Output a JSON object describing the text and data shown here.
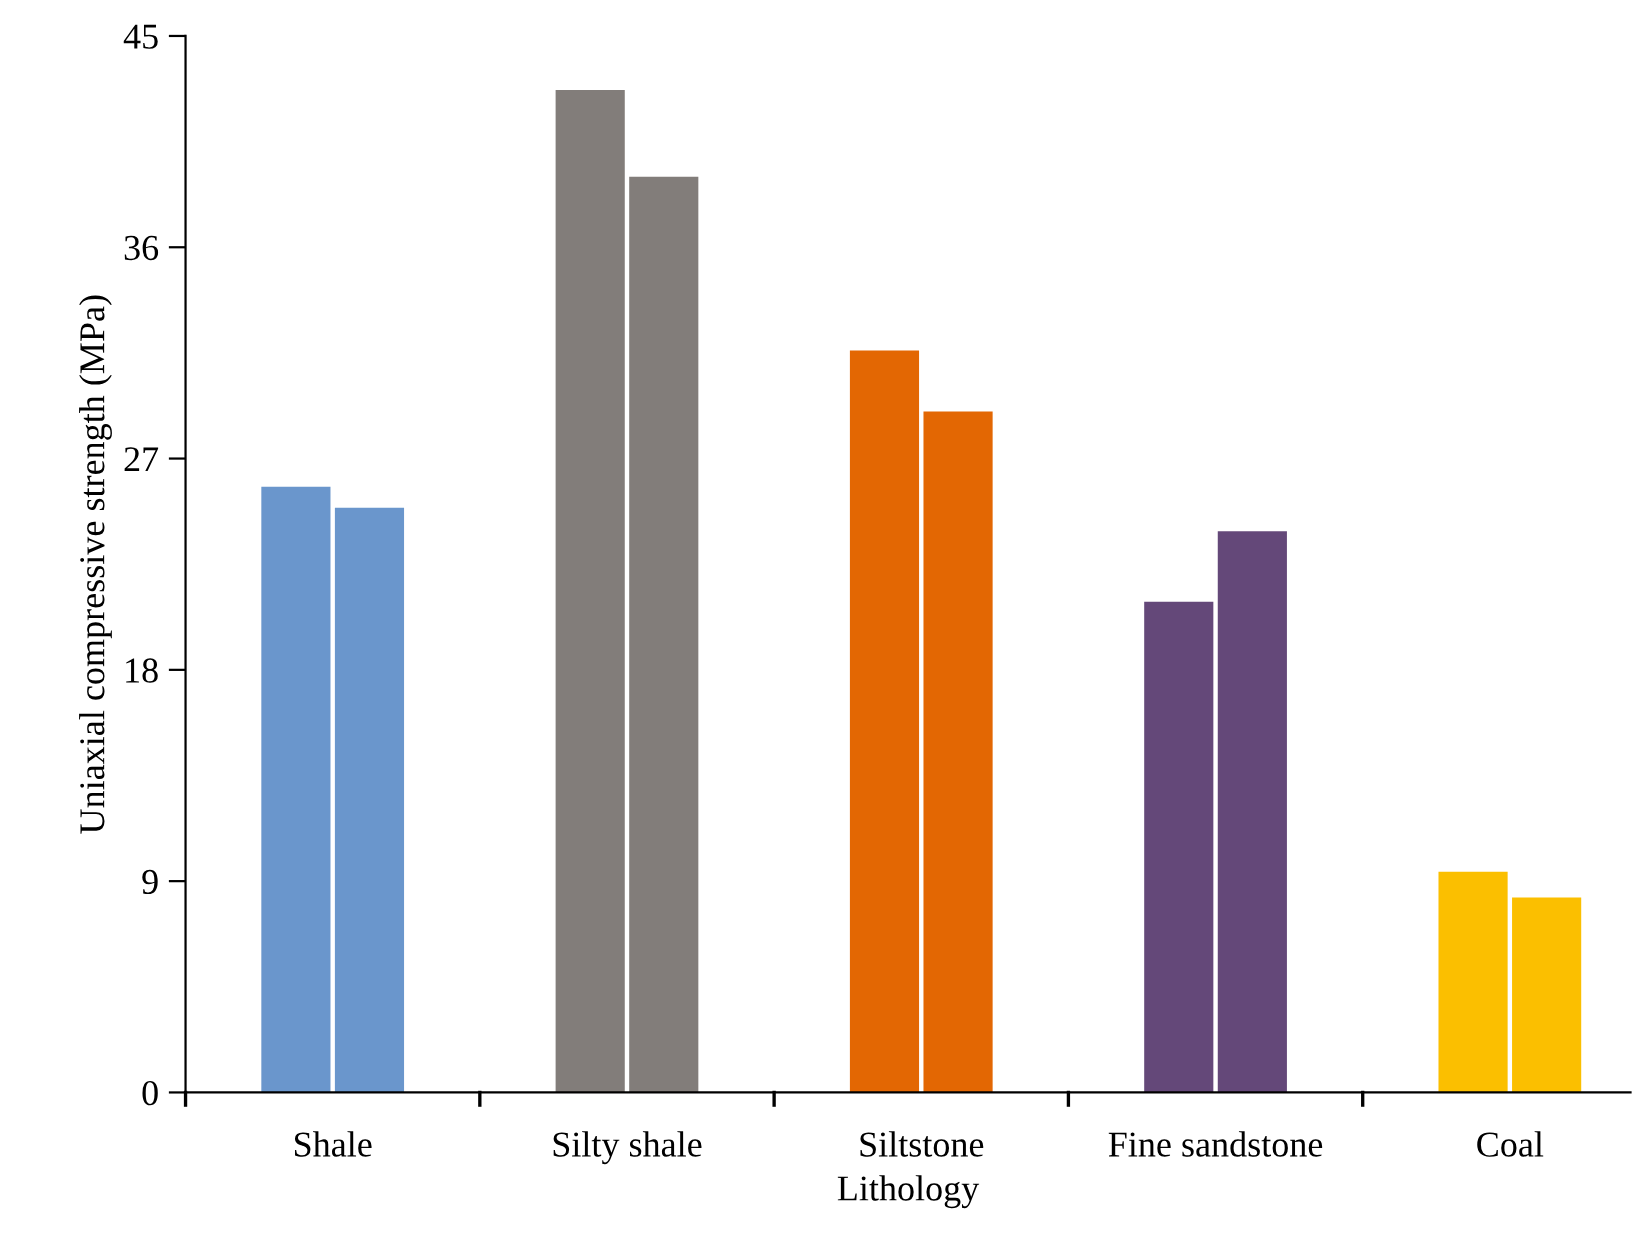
{
  "chart_data": {
    "type": "bar",
    "xlabel": "Lithology",
    "ylabel": "Uniaxial compressive strength (MPa)",
    "categories": [
      "Shale",
      "Silty shale",
      "Siltstone",
      "Fine sandstone",
      "Coal"
    ],
    "series": [
      {
        "colors": [
          "#6a96cc",
          "#827d7a",
          "#e36703",
          "#644879",
          "#fbbf00"
        ],
        "values": [
          25.8,
          42.7,
          31.6,
          20.9,
          9.4
        ]
      },
      {
        "colors": [
          "#6a96cc",
          "#827d7a",
          "#e36703",
          "#644879",
          "#fbbf00"
        ],
        "values": [
          24.9,
          39.0,
          29.0,
          23.9,
          8.3
        ]
      }
    ],
    "ylim": [
      0,
      45
    ],
    "yticks": [
      0,
      9,
      18,
      27,
      36,
      45
    ],
    "grid": false,
    "legend": false
  }
}
